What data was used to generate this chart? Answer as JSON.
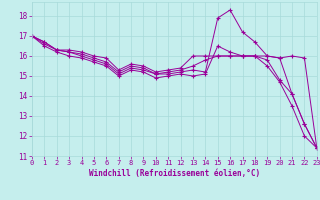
{
  "xlabel": "Windchill (Refroidissement éolien,°C)",
  "bg_color": "#c5eeed",
  "grid_color": "#a8dada",
  "line_color": "#990099",
  "xlim": [
    0,
    23
  ],
  "ylim": [
    11,
    18.7
  ],
  "yticks": [
    11,
    12,
    13,
    14,
    15,
    16,
    17,
    18
  ],
  "xticks": [
    0,
    1,
    2,
    3,
    4,
    5,
    6,
    7,
    8,
    9,
    10,
    11,
    12,
    13,
    14,
    15,
    16,
    17,
    18,
    19,
    20,
    21,
    22,
    23
  ],
  "lines": [
    [
      17.0,
      16.7,
      16.3,
      16.3,
      16.2,
      16.0,
      15.9,
      15.3,
      15.6,
      15.5,
      15.2,
      15.3,
      15.4,
      16.0,
      16.0,
      16.0,
      16.0,
      16.0,
      16.0,
      16.0,
      15.9,
      16.0,
      15.9,
      11.4
    ],
    [
      17.0,
      16.7,
      16.3,
      16.2,
      16.1,
      15.9,
      15.7,
      15.2,
      15.5,
      15.4,
      15.1,
      15.2,
      15.3,
      15.5,
      15.8,
      16.0,
      16.0,
      16.0,
      16.0,
      15.8,
      14.8,
      14.1,
      12.6,
      11.4
    ],
    [
      17.0,
      16.6,
      16.3,
      16.2,
      16.0,
      15.8,
      15.6,
      15.1,
      15.4,
      15.3,
      15.1,
      15.1,
      15.2,
      15.3,
      15.2,
      17.9,
      18.3,
      17.2,
      16.7,
      16.0,
      15.9,
      14.1,
      12.6,
      11.4
    ],
    [
      17.0,
      16.5,
      16.2,
      16.0,
      15.9,
      15.7,
      15.5,
      15.0,
      15.3,
      15.2,
      14.9,
      15.0,
      15.1,
      15.0,
      15.1,
      16.5,
      16.2,
      16.0,
      16.0,
      15.5,
      14.7,
      13.5,
      12.0,
      11.4
    ]
  ]
}
